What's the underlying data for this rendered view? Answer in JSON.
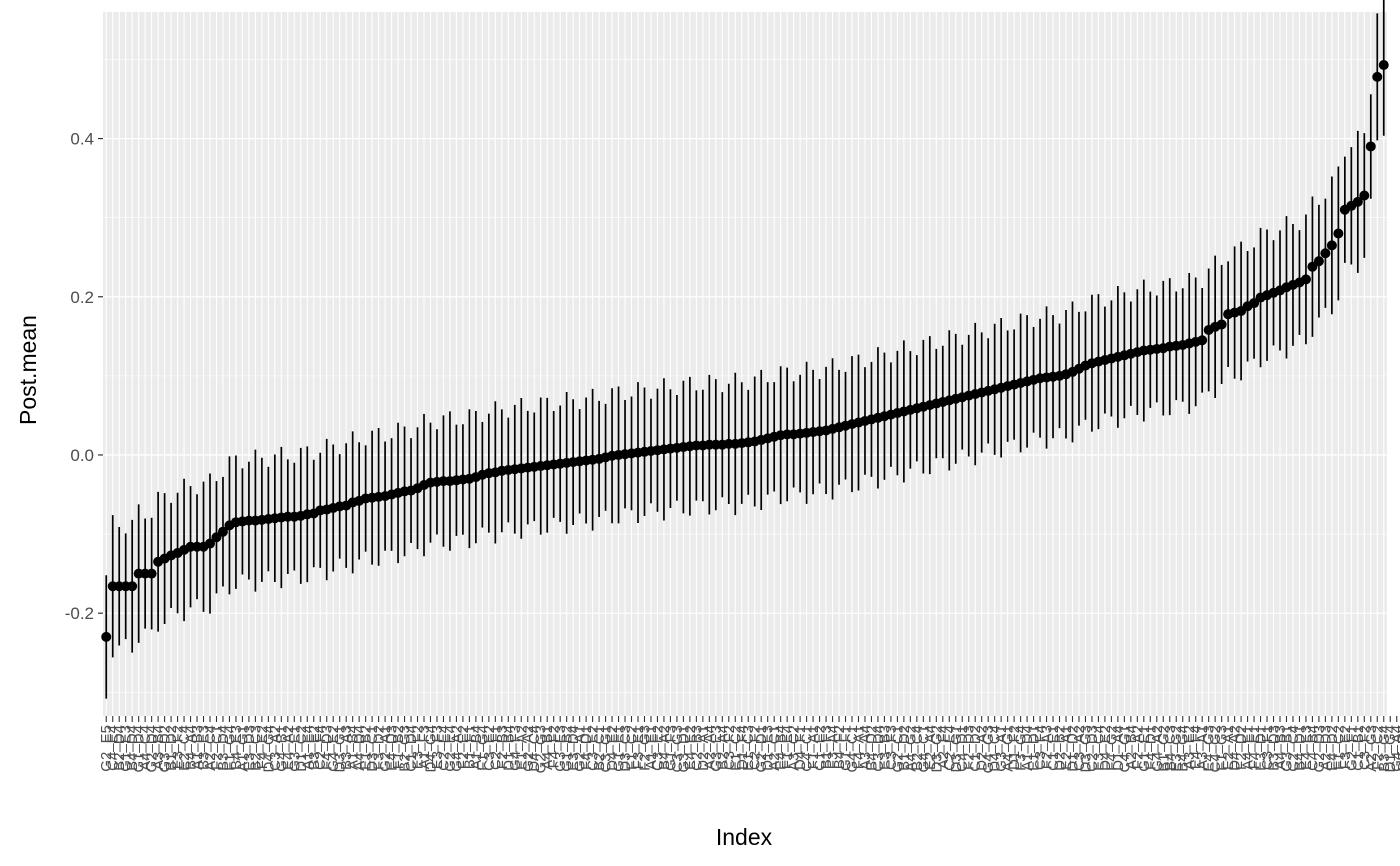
{
  "chart_data": {
    "type": "scatter",
    "title": "",
    "xlabel": "Index",
    "ylabel": "Post.mean",
    "ylim": [
      -0.33,
      0.56
    ],
    "yticks": [
      -0.2,
      0.0,
      0.2,
      0.4
    ],
    "ytick_labels": [
      "-0.2",
      "0.0",
      "0.2",
      "0.4"
    ],
    "grid": true,
    "legend": "none",
    "n_points": 198,
    "ci_halfwidth": 0.078,
    "x_tick_labels": [
      "G2_E5",
      "C4_E4",
      "B2_D4",
      "G1_E3",
      "B4_D4",
      "G1_D4",
      "A4_C4",
      "G2_D4",
      "A3_B4",
      "G3_D2",
      "B1_D2",
      "E3_F2",
      "E2_C4",
      "B4_A4",
      "A1_B3",
      "B3_E3",
      "A2_C4",
      "F2_C1",
      "B3_D4",
      "F1_G4",
      "B4_E3",
      "A1_G1",
      "E3_D3",
      "B2_C3",
      "F4_E2",
      "D4_G4",
      "C3_A2",
      "G4_B1",
      "E4_A2",
      "G3_E1",
      "D1_C2",
      "A1_E4",
      "B3_E2",
      "C2_F4",
      "F4_D3",
      "G4_E2",
      "D3_G1",
      "B3_A3",
      "A1_B4",
      "A4_D4",
      "E1_B2",
      "D3_C1",
      "F3_D2",
      "G2_A1",
      "E4_D3",
      "F1_B2",
      "B2_G3",
      "C1_D4",
      "E3_F2",
      "A1_F3",
      "D4_G4",
      "E3_F3",
      "C2_E4",
      "G2_E4",
      "G4_A2",
      "F2_E2",
      "B1_F1",
      "A1_B4",
      "F1_G4",
      "C3_E2",
      "C2_F1",
      "F2_B3",
      "D1_B4",
      "G4_F3",
      "E1_A2",
      "G2_A2",
      "D4_C4",
      "G2_G3",
      "A4_B1",
      "F4_F2",
      "G3_E3",
      "G1_B2",
      "E3_D4",
      "G2_A1",
      "F4_D1",
      "C3_E2",
      "B2_C1",
      "C3_G1",
      "D4_E2",
      "G1_E1",
      "D3_C3",
      "F1_C2",
      "F3_E1",
      "F2_G3",
      "A1_E1",
      "C3_E2",
      "B4_A2",
      "G1_F3",
      "C3_G3",
      "G3_D1",
      "E4_E2",
      "C2_B3",
      "D2_A1",
      "A2_A4",
      "G3_E3",
      "B2_A4",
      "C3_F2",
      "E1_C2",
      "D1_F4",
      "E1_C3",
      "C2_F2",
      "G2_D1",
      "D1_E3",
      "A2_C1",
      "E4_B4",
      "F1_E4",
      "A3_C2",
      "D4_F1",
      "C4_C1",
      "F1_A1",
      "C1_E2",
      "B1_F3",
      "F3_A4",
      "B4_F2",
      "G1_F1",
      "G4_C1",
      "F4_A1",
      "A3_A4",
      "B4_D2",
      "C3_D4",
      "E3_B3",
      "C3_F3",
      "G2_C1",
      "B1_D2",
      "A4_G2",
      "B2_C4",
      "G4_C1",
      "E2_A4",
      "D3_G2",
      "A2_F4",
      "C2_E4",
      "D3_G1",
      "C4_D1",
      "F2_D3",
      "C1_D2",
      "D2_A2",
      "G4_G3",
      "D4_C4",
      "G3_A1",
      "A4_G1",
      "D1_F2",
      "F3_G4",
      "A1_D4",
      "E1_D1",
      "C3_F4",
      "F2_A3",
      "C1_E1",
      "D2_B2",
      "E2_A1",
      "D1_D2",
      "C3_A2",
      "D3_G3",
      "C2_D3",
      "E3_C4",
      "D4_E2",
      "F4_G2",
      "D1_A4",
      "C4_G1",
      "A2_B4",
      "F2_A2",
      "G1_E1",
      "F4_D1",
      "G4_A2",
      "B1_G2",
      "B4_C3",
      "E3_G2",
      "B4_G4",
      "A3_E2",
      "E4_F4",
      "A3_A1",
      "E4_G3",
      "C4_G2",
      "F1_G3",
      "E2_A1",
      "D4_A2",
      "F2_D2",
      "A4_E1",
      "F4_E1",
      "E3_D1",
      "C3_F1",
      "B3_D3",
      "A4_B3",
      "G3_B1",
      "C2_C4",
      "B4_D1",
      "E4_E3",
      "C4_B4",
      "G2_D3",
      "A2_D3",
      "E4_D2",
      "F1_C2",
      "F3_E2",
      "G2_F1",
      "C1_B1",
      "C3_F2",
      "A2_G3",
      "F2_C2",
      "B3_G4",
      "D1_G4",
      "G4_A4",
      "D2_D3",
      "D3_D1"
    ],
    "values": [
      -0.23,
      -0.166,
      -0.166,
      -0.166,
      -0.166,
      -0.15,
      -0.15,
      -0.15,
      -0.135,
      -0.131,
      -0.127,
      -0.124,
      -0.12,
      -0.116,
      -0.116,
      -0.116,
      -0.112,
      -0.104,
      -0.097,
      -0.089,
      -0.085,
      -0.084,
      -0.083,
      -0.083,
      -0.082,
      -0.081,
      -0.08,
      -0.079,
      -0.078,
      -0.078,
      -0.077,
      -0.075,
      -0.074,
      -0.07,
      -0.069,
      -0.067,
      -0.065,
      -0.064,
      -0.06,
      -0.058,
      -0.055,
      -0.054,
      -0.053,
      -0.052,
      -0.05,
      -0.048,
      -0.046,
      -0.045,
      -0.042,
      -0.038,
      -0.035,
      -0.034,
      -0.033,
      -0.033,
      -0.032,
      -0.031,
      -0.03,
      -0.028,
      -0.025,
      -0.023,
      -0.022,
      -0.02,
      -0.019,
      -0.018,
      -0.017,
      -0.016,
      -0.015,
      -0.014,
      -0.013,
      -0.012,
      -0.011,
      -0.01,
      -0.009,
      -0.008,
      -0.007,
      -0.006,
      -0.005,
      -0.003,
      -0.001,
      0.0,
      0.001,
      0.002,
      0.003,
      0.004,
      0.005,
      0.006,
      0.007,
      0.008,
      0.009,
      0.01,
      0.011,
      0.012,
      0.012,
      0.013,
      0.013,
      0.013,
      0.014,
      0.014,
      0.015,
      0.016,
      0.017,
      0.019,
      0.021,
      0.023,
      0.025,
      0.026,
      0.026,
      0.027,
      0.028,
      0.029,
      0.03,
      0.031,
      0.033,
      0.035,
      0.037,
      0.039,
      0.041,
      0.043,
      0.045,
      0.047,
      0.049,
      0.051,
      0.053,
      0.055,
      0.057,
      0.059,
      0.061,
      0.063,
      0.065,
      0.067,
      0.069,
      0.071,
      0.073,
      0.075,
      0.077,
      0.079,
      0.081,
      0.083,
      0.085,
      0.087,
      0.089,
      0.091,
      0.093,
      0.095,
      0.097,
      0.098,
      0.099,
      0.1,
      0.102,
      0.105,
      0.109,
      0.113,
      0.116,
      0.118,
      0.12,
      0.122,
      0.124,
      0.126,
      0.128,
      0.13,
      0.132,
      0.133,
      0.134,
      0.135,
      0.137,
      0.138,
      0.139,
      0.141,
      0.143,
      0.145,
      0.158,
      0.162,
      0.165,
      0.178,
      0.18,
      0.182,
      0.188,
      0.192,
      0.199,
      0.202,
      0.205,
      0.208,
      0.212,
      0.215,
      0.218,
      0.222,
      0.238,
      0.245,
      0.255,
      0.265,
      0.28,
      0.31,
      0.315,
      0.32,
      0.328,
      0.39,
      0.478,
      0.493
    ]
  }
}
